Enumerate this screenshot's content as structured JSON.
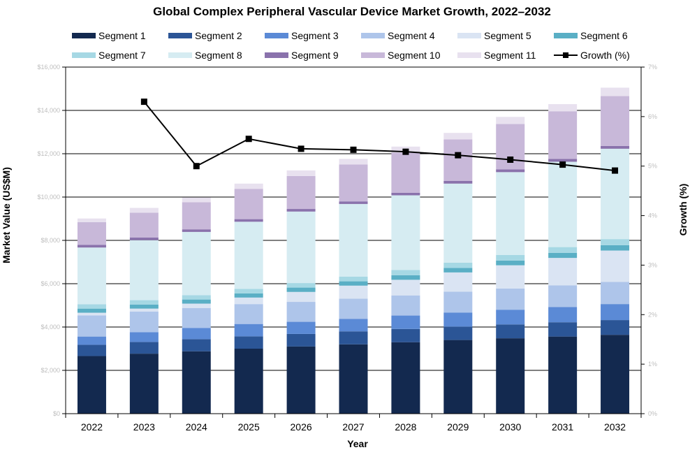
{
  "chart_data": {
    "type": "bar",
    "stacked": true,
    "title": "Global Complex Peripheral Vascular Device Market Growth, 2022–2032",
    "xlabel": "Year",
    "ylabel": "Market Value (US$M)",
    "y2label": "Growth (%)",
    "ylim": [
      0,
      16000
    ],
    "y2lim": [
      0,
      7
    ],
    "yticks": [
      "$0",
      "$2,000",
      "$4,000",
      "$6,000",
      "$8,000",
      "$10,000",
      "$12,000",
      "$14,000",
      "$16,000"
    ],
    "y2ticks": [
      "0%",
      "1%",
      "2%",
      "3%",
      "4%",
      "5%",
      "6%",
      "7%"
    ],
    "categories": [
      "2022",
      "2023",
      "2024",
      "2025",
      "2026",
      "2027",
      "2028",
      "2029",
      "2030",
      "2031",
      "2032"
    ],
    "series": [
      {
        "name": "Segment 1",
        "color": "#13294f",
        "values": [
          2660,
          2770,
          2880,
          3000,
          3100,
          3200,
          3300,
          3400,
          3480,
          3560,
          3640
        ]
      },
      {
        "name": "Segment 2",
        "color": "#2b5596",
        "values": [
          520,
          540,
          560,
          570,
          580,
          600,
          610,
          620,
          640,
          660,
          680
        ]
      },
      {
        "name": "Segment 3",
        "color": "#5b8ad6",
        "values": [
          380,
          450,
          520,
          570,
          560,
          580,
          620,
          650,
          680,
          700,
          740
        ]
      },
      {
        "name": "Segment 4",
        "color": "#aec5ea",
        "values": [
          980,
          950,
          920,
          920,
          920,
          930,
          930,
          960,
          980,
          1000,
          1020
        ]
      },
      {
        "name": "Segment 5",
        "color": "#dae4f3",
        "values": [
          120,
          140,
          200,
          300,
          460,
          600,
          720,
          890,
          1070,
          1270,
          1450
        ]
      },
      {
        "name": "Segment 6",
        "color": "#5aafc5",
        "values": [
          190,
          190,
          190,
          190,
          200,
          200,
          210,
          210,
          220,
          230,
          250
        ]
      },
      {
        "name": "Segment 7",
        "color": "#a6d8e4",
        "values": [
          200,
          200,
          200,
          210,
          210,
          220,
          240,
          240,
          260,
          270,
          280
        ]
      },
      {
        "name": "Segment 8",
        "color": "#d6ecf2",
        "values": [
          2620,
          2770,
          2920,
          3100,
          3300,
          3350,
          3450,
          3650,
          3820,
          3940,
          4170
        ]
      },
      {
        "name": "Segment 9",
        "color": "#8a72ac",
        "values": [
          120,
          120,
          120,
          120,
          120,
          120,
          120,
          130,
          130,
          130,
          130
        ]
      },
      {
        "name": "Segment 10",
        "color": "#c8b8d9",
        "values": [
          1050,
          1150,
          1250,
          1400,
          1520,
          1700,
          1850,
          1910,
          2090,
          2200,
          2300
        ]
      },
      {
        "name": "Segment 11",
        "color": "#e8e1ef",
        "values": [
          170,
          220,
          220,
          240,
          260,
          260,
          280,
          300,
          330,
          330,
          390
        ]
      }
    ],
    "line": {
      "name": "Growth (%)",
      "color": "#000000",
      "values": [
        null,
        6.3,
        5.0,
        5.55,
        5.35,
        5.33,
        5.29,
        5.22,
        5.13,
        5.03,
        4.91
      ]
    },
    "legend": "top",
    "grid": true
  }
}
